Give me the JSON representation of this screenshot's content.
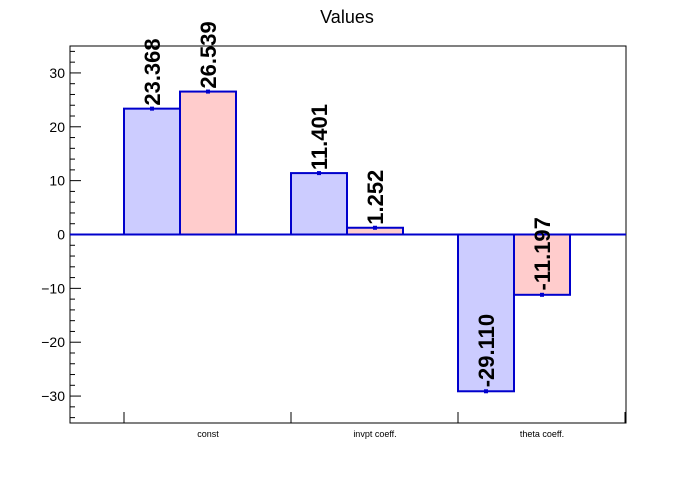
{
  "chart_data": {
    "type": "bar",
    "title": "Values",
    "xlabel": "",
    "ylabel": "",
    "categories": [
      "const",
      "invpt coeff.",
      "theta coeff."
    ],
    "series": [
      {
        "values": [
          23.368,
          11.401,
          -29.11
        ],
        "labels": [
          "23.368",
          "11.401",
          "-29.110"
        ],
        "fill": "#ccccff",
        "stroke": "#0000cc"
      },
      {
        "values": [
          26.539,
          1.252,
          -11.197
        ],
        "labels": [
          "26.539",
          "1.252",
          "-11.197"
        ],
        "fill": "#ffcccc",
        "stroke": "#0000cc"
      }
    ],
    "ylim": [
      -35,
      35
    ],
    "yticks": [
      -30,
      -20,
      -10,
      0,
      10,
      20,
      30
    ],
    "yticklabels": [
      "−30",
      "−20",
      "−10",
      "0",
      "10",
      "20",
      "30"
    ],
    "grid": false,
    "legend": "none"
  }
}
